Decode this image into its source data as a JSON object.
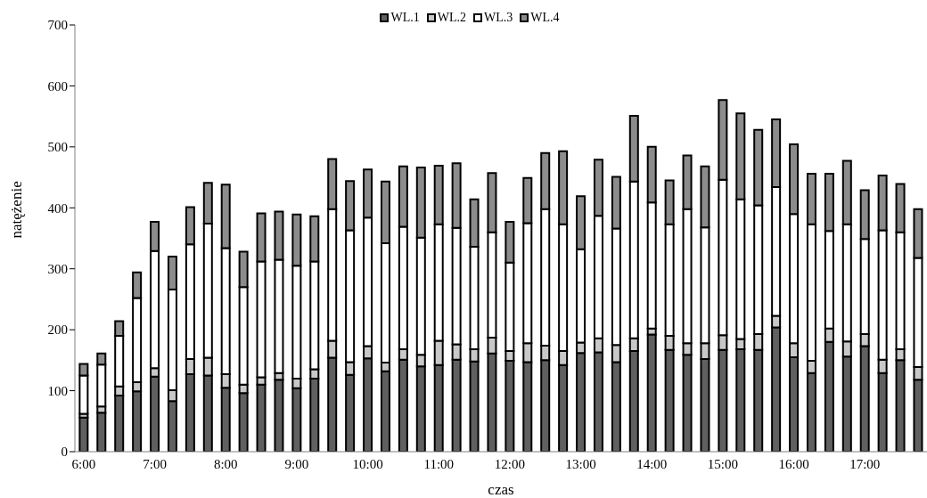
{
  "chart_data": {
    "type": "bar",
    "stacked": true,
    "xlabel": "czas",
    "ylabel": "natężenie",
    "categories": [
      "6:00",
      null,
      null,
      null,
      "7:00",
      null,
      null,
      null,
      "8:00",
      null,
      null,
      null,
      "9:00",
      null,
      null,
      null,
      "10:00",
      null,
      null,
      null,
      "11:00",
      null,
      null,
      null,
      "12:00",
      null,
      null,
      null,
      "13:00",
      null,
      null,
      null,
      "14:00",
      null,
      null,
      null,
      "15:00",
      null,
      null,
      null,
      "16:00",
      null,
      null,
      null,
      "17:00",
      null,
      null,
      null
    ],
    "series": [
      {
        "name": "WL.1",
        "color": "#606060",
        "values": [
          56,
          64,
          92,
          99,
          123,
          83,
          127,
          125,
          105,
          96,
          110,
          118,
          104,
          120,
          154,
          126,
          153,
          132,
          151,
          140,
          142,
          151,
          148,
          161,
          149,
          147,
          150,
          142,
          162,
          163,
          147,
          165,
          192,
          167,
          159,
          152,
          167,
          168,
          167,
          204,
          155,
          129,
          180,
          156,
          173,
          129,
          150,
          118
        ]
      },
      {
        "name": "WL.2",
        "color": "#c8c8c8",
        "values": [
          6,
          10,
          15,
          15,
          14,
          18,
          25,
          29,
          22,
          14,
          12,
          11,
          16,
          15,
          28,
          21,
          20,
          14,
          17,
          19,
          40,
          25,
          20,
          26,
          16,
          31,
          24,
          23,
          17,
          23,
          28,
          21,
          10,
          23,
          19,
          26,
          24,
          17,
          26,
          19,
          23,
          20,
          22,
          25,
          20,
          22,
          18,
          21
        ]
      },
      {
        "name": "WL.3",
        "color": "#ffffff",
        "values": [
          63,
          69,
          83,
          138,
          192,
          165,
          188,
          220,
          207,
          160,
          190,
          186,
          185,
          177,
          216,
          216,
          211,
          196,
          201,
          192,
          191,
          191,
          168,
          173,
          145,
          197,
          224,
          208,
          153,
          201,
          191,
          257,
          207,
          183,
          220,
          190,
          255,
          229,
          211,
          211,
          212,
          224,
          160,
          192,
          156,
          212,
          192,
          179
        ]
      },
      {
        "name": "WL.4",
        "color": "#8c8c8c",
        "values": [
          19,
          18,
          24,
          42,
          48,
          54,
          61,
          67,
          104,
          58,
          79,
          79,
          84,
          74,
          82,
          81,
          79,
          101,
          99,
          115,
          96,
          106,
          78,
          97,
          67,
          74,
          92,
          120,
          87,
          92,
          85,
          108,
          91,
          72,
          88,
          100,
          131,
          141,
          124,
          111,
          114,
          83,
          94,
          104,
          80,
          90,
          79,
          80
        ]
      }
    ],
    "ylim": [
      0,
      700
    ],
    "yticks": [
      0,
      100,
      200,
      300,
      400,
      500,
      600,
      700
    ],
    "legend": "top"
  }
}
